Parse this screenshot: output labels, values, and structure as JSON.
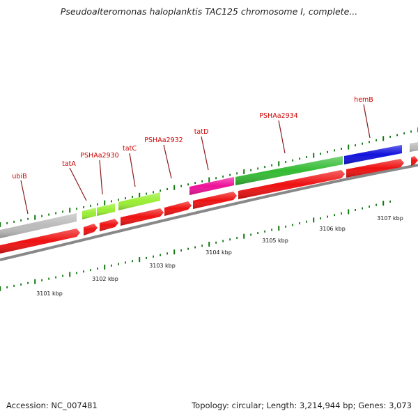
{
  "title": "Pseudoalteromonas haloplanktis TAC125 chromosome I, complete...",
  "footer": {
    "accession": "Accession: NC_007481",
    "summary": "Topology: circular; Length: 3,214,944 bp; Genes: 3,073"
  },
  "colors": {
    "cds": "#ee1111",
    "gene_gray": "#bbbbbb",
    "gene_lime": "#99ee33",
    "gene_magenta": "#ee1199",
    "gene_green": "#33bb33",
    "gene_blue": "#1111dd",
    "backbone": "#888888",
    "tick": "#117711",
    "label": "#cc0000"
  },
  "genes": [
    {
      "name": "ubiB"
    },
    {
      "name": "tatA"
    },
    {
      "name": "PSHAa2930"
    },
    {
      "name": "tatC"
    },
    {
      "name": "PSHAa2932"
    },
    {
      "name": "tatD"
    },
    {
      "name": "PSHAa2934"
    },
    {
      "name": "hemB"
    }
  ],
  "kbp_labels": [
    "3101 kbp",
    "3102 kbp",
    "3103 kbp",
    "3104 kbp",
    "3105 kbp",
    "3106 kbp",
    "3107 kbp"
  ]
}
